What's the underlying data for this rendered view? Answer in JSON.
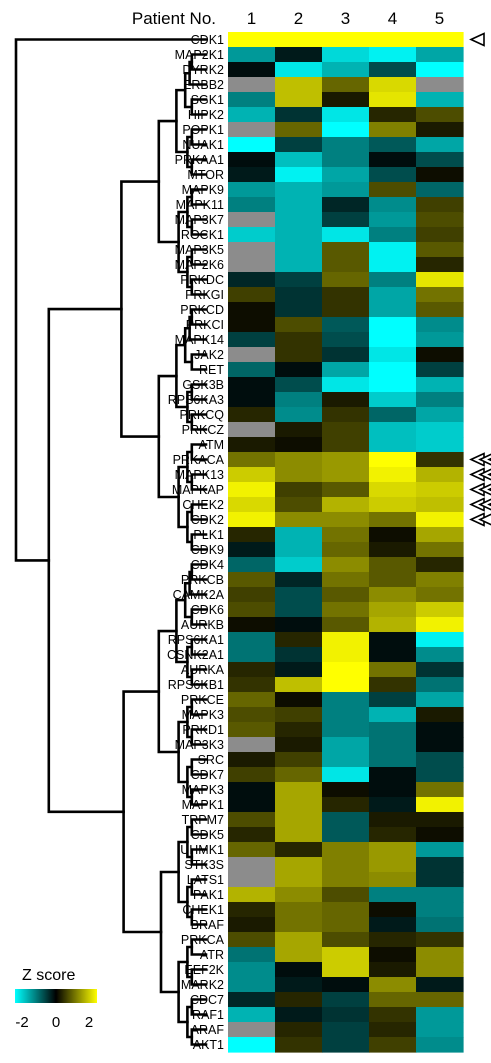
{
  "header": {
    "title": "Patient No."
  },
  "chart_data": {
    "type": "heatmap",
    "columns": [
      "1",
      "2",
      "3",
      "4",
      "5"
    ],
    "rows": [
      "CDK1",
      "MAP2K1",
      "DYRK2",
      "ERBB2",
      "SGK1",
      "HIPK2",
      "POPK1",
      "NUAK1",
      "PRKAA1",
      "MTOR",
      "MAPK9",
      "MAPK11",
      "MAP3K7",
      "ROCK1",
      "MAP3K5",
      "MAP2K6",
      "PRKDC",
      "PRKGI",
      "PRKCD",
      "PRKCI",
      "MAPK14",
      "JAK2",
      "RET",
      "GSK3B",
      "RPS6KA3",
      "PRKCQ",
      "PRKCZ",
      "ATM",
      "PRKACA",
      "MAPK13",
      "MAPKAP",
      "CHEK2",
      "CDK2",
      "PLK1",
      "CDK9",
      "CDK4",
      "PRKCB",
      "CAMK2A",
      "CDK6",
      "AURKB",
      "RPS6KA1",
      "CSNK2A1",
      "AURKA",
      "RPS6KB1",
      "PRKCE",
      "MAPK3",
      "PRKD1",
      "MAP3K3",
      "SRC",
      "CDK7",
      "MAPK3",
      "MAPK1",
      "TRPM7",
      "CDK5",
      "UHMK1",
      "STK3S",
      "LATS1",
      "PAK1",
      "CHEK1",
      "BRAF",
      "PRKCA",
      "ATR",
      "EEF2K",
      "MARK2",
      "CDC7",
      "RAF1",
      "ARAF",
      "AKT1"
    ],
    "values": [
      [
        2,
        2,
        2,
        2,
        2
      ],
      [
        -1.2,
        -0.2,
        -1.7,
        -1.9,
        -1.3
      ],
      [
        -0.1,
        -1.8,
        -1.4,
        -0.6,
        -2
      ],
      [
        null,
        1.5,
        0.8,
        1.7,
        null
      ],
      [
        -1.0,
        1.5,
        0.2,
        1.8,
        -1.4
      ],
      [
        -1.4,
        -0.4,
        -1.8,
        0.3,
        0.6
      ],
      [
        null,
        0.8,
        -2,
        1.0,
        0.2
      ],
      [
        -2,
        -0.5,
        -1.0,
        -0.7,
        -1.3
      ],
      [
        -0.1,
        -1.5,
        -1.0,
        -0.1,
        -0.6
      ],
      [
        -0.2,
        -1.9,
        -1.3,
        -0.6,
        0.1
      ],
      [
        -1.2,
        -1.4,
        -1.2,
        0.6,
        -0.8
      ],
      [
        -1.0,
        -1.4,
        -0.3,
        -1.1,
        0.5
      ],
      [
        null,
        -1.4,
        -0.5,
        -1.2,
        0.6
      ],
      [
        -1.6,
        -1.4,
        -1.8,
        -1.0,
        0.5
      ],
      [
        null,
        -1.4,
        0.7,
        -1.9,
        0.7
      ],
      [
        null,
        -1.4,
        0.7,
        -1.9,
        0.3
      ],
      [
        -0.3,
        -0.5,
        0.8,
        -1.0,
        1.8
      ],
      [
        0.5,
        -0.4,
        0.4,
        -1.3,
        0.9
      ],
      [
        0.1,
        -0.4,
        0.4,
        -1.3,
        0.7
      ],
      [
        0.1,
        0.6,
        -0.7,
        -2,
        -1.1
      ],
      [
        -0.5,
        0.4,
        -0.6,
        -2,
        -1.2
      ],
      [
        null,
        0.4,
        -0.4,
        -1.8,
        0.1
      ],
      [
        -0.8,
        -0.1,
        -1.3,
        -2,
        -0.5
      ],
      [
        -0.1,
        -0.6,
        -1.8,
        -2,
        -1.4
      ],
      [
        -0.1,
        -1.0,
        0.2,
        -1.6,
        -1.0
      ],
      [
        0.3,
        -1.1,
        0.4,
        -0.8,
        -1.3
      ],
      [
        null,
        0.2,
        0.5,
        -1.5,
        -1.6
      ],
      [
        0.2,
        0.1,
        0.5,
        -1.5,
        -1.6
      ],
      [
        0.9,
        1.1,
        1.2,
        2,
        0.4
      ],
      [
        1.6,
        1.1,
        1.2,
        1.9,
        1.4
      ],
      [
        1.9,
        0.5,
        0.7,
        1.7,
        1.6
      ],
      [
        1.7,
        0.6,
        1.4,
        1.6,
        1.5
      ],
      [
        1.9,
        1.1,
        1.1,
        0.9,
        1.9
      ],
      [
        0.3,
        -1.4,
        0.9,
        0.1,
        1.3
      ],
      [
        -0.2,
        -1.4,
        0.8,
        0.2,
        0.9
      ],
      [
        -0.8,
        -1.6,
        1.1,
        0.7,
        0.3
      ],
      [
        0.7,
        -0.3,
        0.9,
        0.7,
        1.0
      ],
      [
        0.5,
        -0.6,
        0.7,
        1.1,
        0.9
      ],
      [
        0.6,
        -0.6,
        0.9,
        1.3,
        1.6
      ],
      [
        0.1,
        -0.1,
        0.7,
        1.4,
        1.9
      ],
      [
        -0.9,
        0.3,
        1.9,
        -0.1,
        -1.9
      ],
      [
        -0.9,
        -0.4,
        1.9,
        -0.1,
        -1.1
      ],
      [
        0.3,
        -0.2,
        2,
        0.9,
        -0.4
      ],
      [
        0.4,
        1.5,
        2,
        0.4,
        -0.9
      ],
      [
        0.8,
        0.1,
        -1.0,
        -0.5,
        -1.3
      ],
      [
        0.6,
        0.5,
        -1.0,
        -1.4,
        0.2
      ],
      [
        0.7,
        0.3,
        -1.0,
        -0.9,
        -0.1
      ],
      [
        null,
        0.2,
        -1.3,
        -0.9,
        -0.1
      ],
      [
        0.2,
        0.5,
        -1.3,
        -0.9,
        -0.6
      ],
      [
        0.5,
        0.8,
        -1.8,
        -0.1,
        -0.6
      ],
      [
        -0.1,
        1.3,
        0.1,
        -0.1,
        0.9
      ],
      [
        -0.1,
        1.3,
        0.3,
        -0.2,
        1.9
      ],
      [
        0.6,
        1.3,
        -0.7,
        0.2,
        0.2
      ],
      [
        0.3,
        1.3,
        -0.7,
        0.3,
        0.1
      ],
      [
        0.8,
        0.3,
        1.0,
        1.2,
        -1.2
      ],
      [
        null,
        1.3,
        1.0,
        1.2,
        -0.4
      ],
      [
        null,
        1.3,
        1.0,
        1.1,
        -0.4
      ],
      [
        1.4,
        1.1,
        0.6,
        -1.0,
        -1.0
      ],
      [
        0.3,
        0.9,
        0.8,
        0.1,
        -1.0
      ],
      [
        0.2,
        0.9,
        0.8,
        -0.2,
        -0.9
      ],
      [
        0.6,
        1.3,
        0.6,
        0.3,
        0.4
      ],
      [
        -0.9,
        1.3,
        1.6,
        0.1,
        1.1
      ],
      [
        -1.1,
        -0.1,
        1.6,
        0.2,
        1.1
      ],
      [
        -1.1,
        -0.2,
        -0.1,
        1.1,
        -0.2
      ],
      [
        -0.3,
        0.3,
        -0.5,
        0.8,
        0.8
      ],
      [
        -1.4,
        -0.2,
        -0.4,
        0.4,
        -1.2
      ],
      [
        null,
        0.3,
        -0.5,
        0.3,
        -1.2
      ],
      [
        -2,
        0.4,
        -0.5,
        0.5,
        -1.1
      ]
    ],
    "missing_color": "#8c8c8c",
    "highlighted_rows": [
      0,
      28,
      29,
      30,
      31,
      32
    ],
    "color_scale": {
      "title": "Z score",
      "min": -2,
      "max": 2,
      "ticks": [
        "-2",
        "0",
        "2"
      ],
      "colors": [
        "#00ffff",
        "#000000",
        "#ffff00"
      ]
    }
  }
}
